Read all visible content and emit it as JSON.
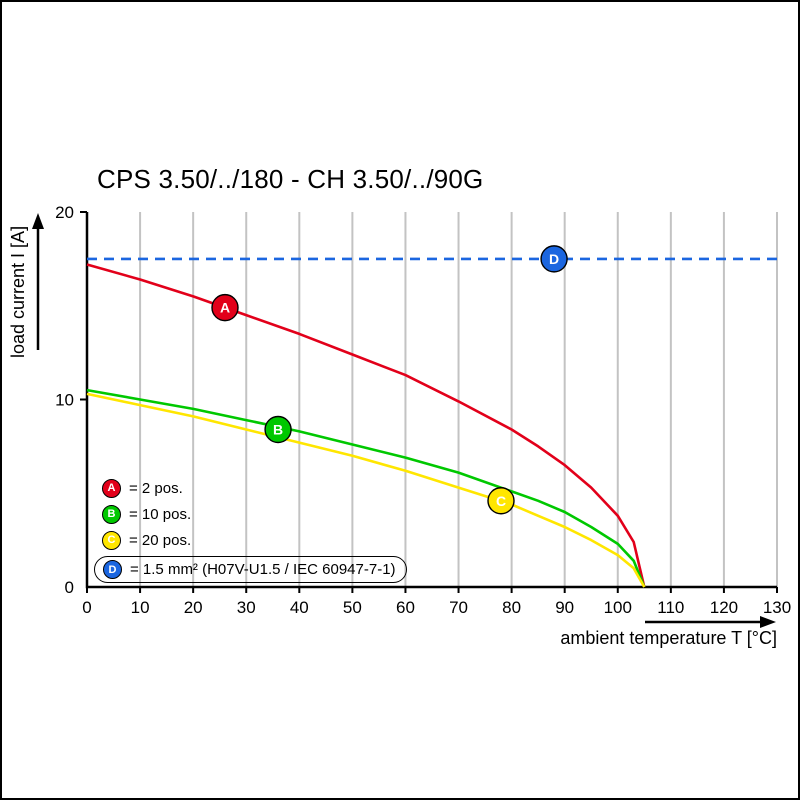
{
  "title": "CPS 3.50/../180 - CH 3.50/../90G",
  "colors": {
    "red": "#e2001a",
    "green": "#00c800",
    "yellow": "#ffe600",
    "blue": "#1b66e0",
    "grid": "#c3c3c3",
    "axis": "#000000"
  },
  "axes": {
    "x": {
      "label": "ambient temperature T [°C]",
      "ticks": [
        0,
        10,
        20,
        30,
        40,
        50,
        60,
        70,
        80,
        90,
        100,
        110,
        120,
        130
      ]
    },
    "y": {
      "label": "load current I [A]",
      "ticks": [
        0,
        10,
        20
      ]
    }
  },
  "legend": {
    "items": [
      {
        "letter": "A",
        "color": "red",
        "label": "= 2 pos."
      },
      {
        "letter": "B",
        "color": "green",
        "label": "= 10 pos."
      },
      {
        "letter": "C",
        "color": "yellow",
        "label": "= 20 pos."
      },
      {
        "letter": "D",
        "color": "blue",
        "label": "= 1.5 mm² (H07V-U1.5 / IEC 60947-7-1)"
      }
    ]
  },
  "chart_data": {
    "type": "line",
    "title": "CPS 3.50/../180 - CH 3.50/../90G",
    "xlabel": "ambient temperature T [°C]",
    "ylabel": "load current I [A]",
    "xlim": [
      0,
      130
    ],
    "ylim": [
      0,
      20
    ],
    "grid": "vertical-only",
    "legend_position": "inside-bottom-left",
    "series": [
      {
        "name": "A",
        "label": "2 pos.",
        "color": "#e2001a",
        "style": "solid",
        "marker": {
          "x": 26,
          "y": 14.9
        },
        "points": [
          [
            0,
            17.2
          ],
          [
            10,
            16.4
          ],
          [
            20,
            15.5
          ],
          [
            30,
            14.5
          ],
          [
            40,
            13.5
          ],
          [
            50,
            12.4
          ],
          [
            60,
            11.3
          ],
          [
            70,
            9.9
          ],
          [
            80,
            8.4
          ],
          [
            85,
            7.5
          ],
          [
            90,
            6.5
          ],
          [
            95,
            5.3
          ],
          [
            100,
            3.8
          ],
          [
            103,
            2.4
          ],
          [
            105,
            0
          ]
        ]
      },
      {
        "name": "B",
        "label": "10 pos.",
        "color": "#00c800",
        "style": "solid",
        "marker": {
          "x": 36,
          "y": 8.4
        },
        "points": [
          [
            0,
            10.5
          ],
          [
            10,
            10.0
          ],
          [
            20,
            9.5
          ],
          [
            30,
            8.9
          ],
          [
            40,
            8.3
          ],
          [
            50,
            7.6
          ],
          [
            60,
            6.9
          ],
          [
            70,
            6.1
          ],
          [
            80,
            5.1
          ],
          [
            85,
            4.6
          ],
          [
            90,
            4.0
          ],
          [
            95,
            3.2
          ],
          [
            100,
            2.3
          ],
          [
            103,
            1.4
          ],
          [
            105,
            0
          ]
        ]
      },
      {
        "name": "C",
        "label": "20 pos.",
        "color": "#ffe600",
        "style": "solid",
        "marker": {
          "x": 78,
          "y": 4.6
        },
        "points": [
          [
            0,
            10.3
          ],
          [
            10,
            9.7
          ],
          [
            20,
            9.1
          ],
          [
            30,
            8.4
          ],
          [
            40,
            7.7
          ],
          [
            50,
            7.0
          ],
          [
            60,
            6.2
          ],
          [
            70,
            5.3
          ],
          [
            80,
            4.4
          ],
          [
            85,
            3.8
          ],
          [
            90,
            3.2
          ],
          [
            95,
            2.5
          ],
          [
            100,
            1.7
          ],
          [
            103,
            1.0
          ],
          [
            105,
            0
          ]
        ]
      },
      {
        "name": "D",
        "label": "1.5 mm² (H07V-U1.5 / IEC 60947-7-1)",
        "color": "#1b66e0",
        "style": "dashed",
        "marker": {
          "x": 88,
          "y": 17.5
        },
        "points": [
          [
            0,
            17.5
          ],
          [
            130,
            17.5
          ]
        ]
      }
    ]
  }
}
